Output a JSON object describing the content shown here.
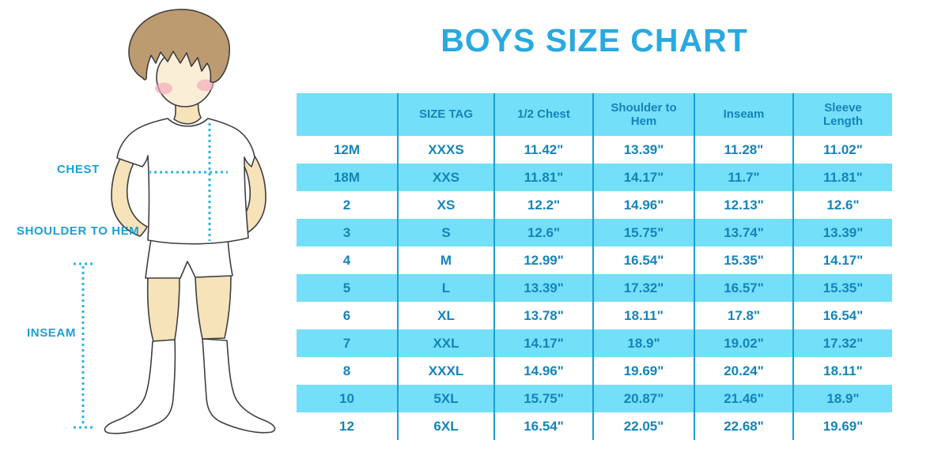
{
  "title": "BOYS SIZE CHART",
  "diagram": {
    "labels": {
      "chest": "CHEST",
      "shoulder_to_hem": "SHOULDER TO HEM",
      "inseam": "INSEAM"
    }
  },
  "chart_data": {
    "type": "table",
    "title": "BOYS SIZE CHART",
    "columns": [
      "",
      "SIZE TAG",
      "1/2 Chest",
      "Shoulder to Hem",
      "Inseam",
      "Sleeve Length"
    ],
    "rows": [
      [
        "12M",
        "XXXS",
        "11.42\"",
        "13.39\"",
        "11.28\"",
        "11.02\""
      ],
      [
        "18M",
        "XXS",
        "11.81\"",
        "14.17\"",
        "11.7\"",
        "11.81\""
      ],
      [
        "2",
        "XS",
        "12.2\"",
        "14.96\"",
        "12.13\"",
        "12.6\""
      ],
      [
        "3",
        "S",
        "12.6\"",
        "15.75\"",
        "13.74\"",
        "13.39\""
      ],
      [
        "4",
        "M",
        "12.99\"",
        "16.54\"",
        "15.35\"",
        "14.17\""
      ],
      [
        "5",
        "L",
        "13.39\"",
        "17.32\"",
        "16.57\"",
        "15.35\""
      ],
      [
        "6",
        "XL",
        "13.78\"",
        "18.11\"",
        "17.8\"",
        "16.54\""
      ],
      [
        "7",
        "XXL",
        "14.17\"",
        "18.9\"",
        "19.02\"",
        "17.32\""
      ],
      [
        "8",
        "XXXL",
        "14.96\"",
        "19.69\"",
        "20.24\"",
        "18.11\""
      ],
      [
        "10",
        "5XL",
        "15.75\"",
        "20.87\"",
        "21.46\"",
        "18.9\""
      ],
      [
        "12",
        "6XL",
        "16.54\"",
        "22.05\"",
        "22.68\"",
        "19.69\""
      ]
    ],
    "layout": "header row blue, body rows alternate white/blue, blue vertical dividers"
  },
  "colors": {
    "title_blue": "#29a9e0",
    "label_blue": "#1d9fd8",
    "table_row_blue": "#74dff9",
    "table_divider_blue": "#189fd6",
    "table_text_blue": "#1484ba",
    "dotted_line_blue": "#2bb4e8",
    "skin": "#f7e3b9",
    "face": "#fbeed7",
    "hair_brown": "#bd9b70",
    "cheek_pink": "#f3a8bb"
  }
}
